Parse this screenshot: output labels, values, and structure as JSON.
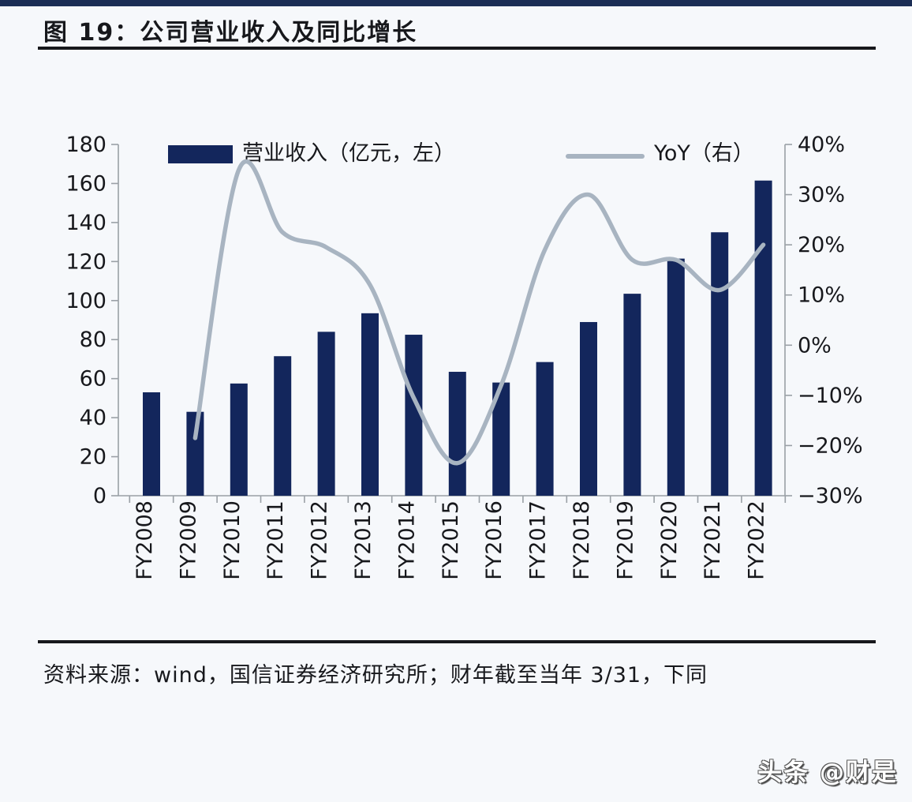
{
  "page": {
    "title": "图 19：公司营业收入及同比增长",
    "source_note": "资料来源：wind，国信证券经济研究所；财年截至当年 3/31，下同",
    "watermark": "头条 @财是"
  },
  "legend": {
    "bar_label": "营业收入（亿元，左）",
    "line_label": "YoY（右）"
  },
  "colors": {
    "bar": "#13265c",
    "line": "#a8b4c1",
    "top_strip": "#1b2d55",
    "rule": "#17181c",
    "axis_line": "#9aa0a6",
    "tick_text": "#17181c"
  },
  "chart_data": {
    "type": "bar",
    "subtype": "dual-axis bar + smoothed line",
    "title": "公司营业收入及同比增长",
    "categories": [
      "FY2008",
      "FY2009",
      "FY2010",
      "FY2011",
      "FY2012",
      "FY2013",
      "FY2014",
      "FY2015",
      "FY2016",
      "FY2017",
      "FY2018",
      "FY2019",
      "FY2020",
      "FY2021",
      "FY2022"
    ],
    "series": [
      {
        "name": "营业收入（亿元，左）",
        "type": "bar",
        "axis": "left",
        "values": [
          53,
          43,
          57.5,
          71.5,
          84,
          93.5,
          82.5,
          63.5,
          58,
          68.5,
          89,
          103.5,
          121.5,
          135,
          161.5
        ]
      },
      {
        "name": "YoY（右）",
        "type": "line",
        "axis": "right",
        "values": [
          null,
          -18.5,
          35,
          22.5,
          19.5,
          12,
          -10.5,
          -23.5,
          -8,
          19,
          30,
          17,
          17,
          11,
          20
        ]
      }
    ],
    "left_axis": {
      "range": [
        0,
        180
      ],
      "tick_step": 20,
      "tick_labels": [
        "0",
        "20",
        "40",
        "60",
        "80",
        "100",
        "120",
        "140",
        "160",
        "180"
      ]
    },
    "right_axis": {
      "range": [
        -30,
        40
      ],
      "tick_step": 10,
      "tick_labels": [
        "−30%",
        "−20%",
        "−10%",
        "0%",
        "10%",
        "20%",
        "30%",
        "40%"
      ]
    },
    "grid": false,
    "legend_position": "top"
  }
}
